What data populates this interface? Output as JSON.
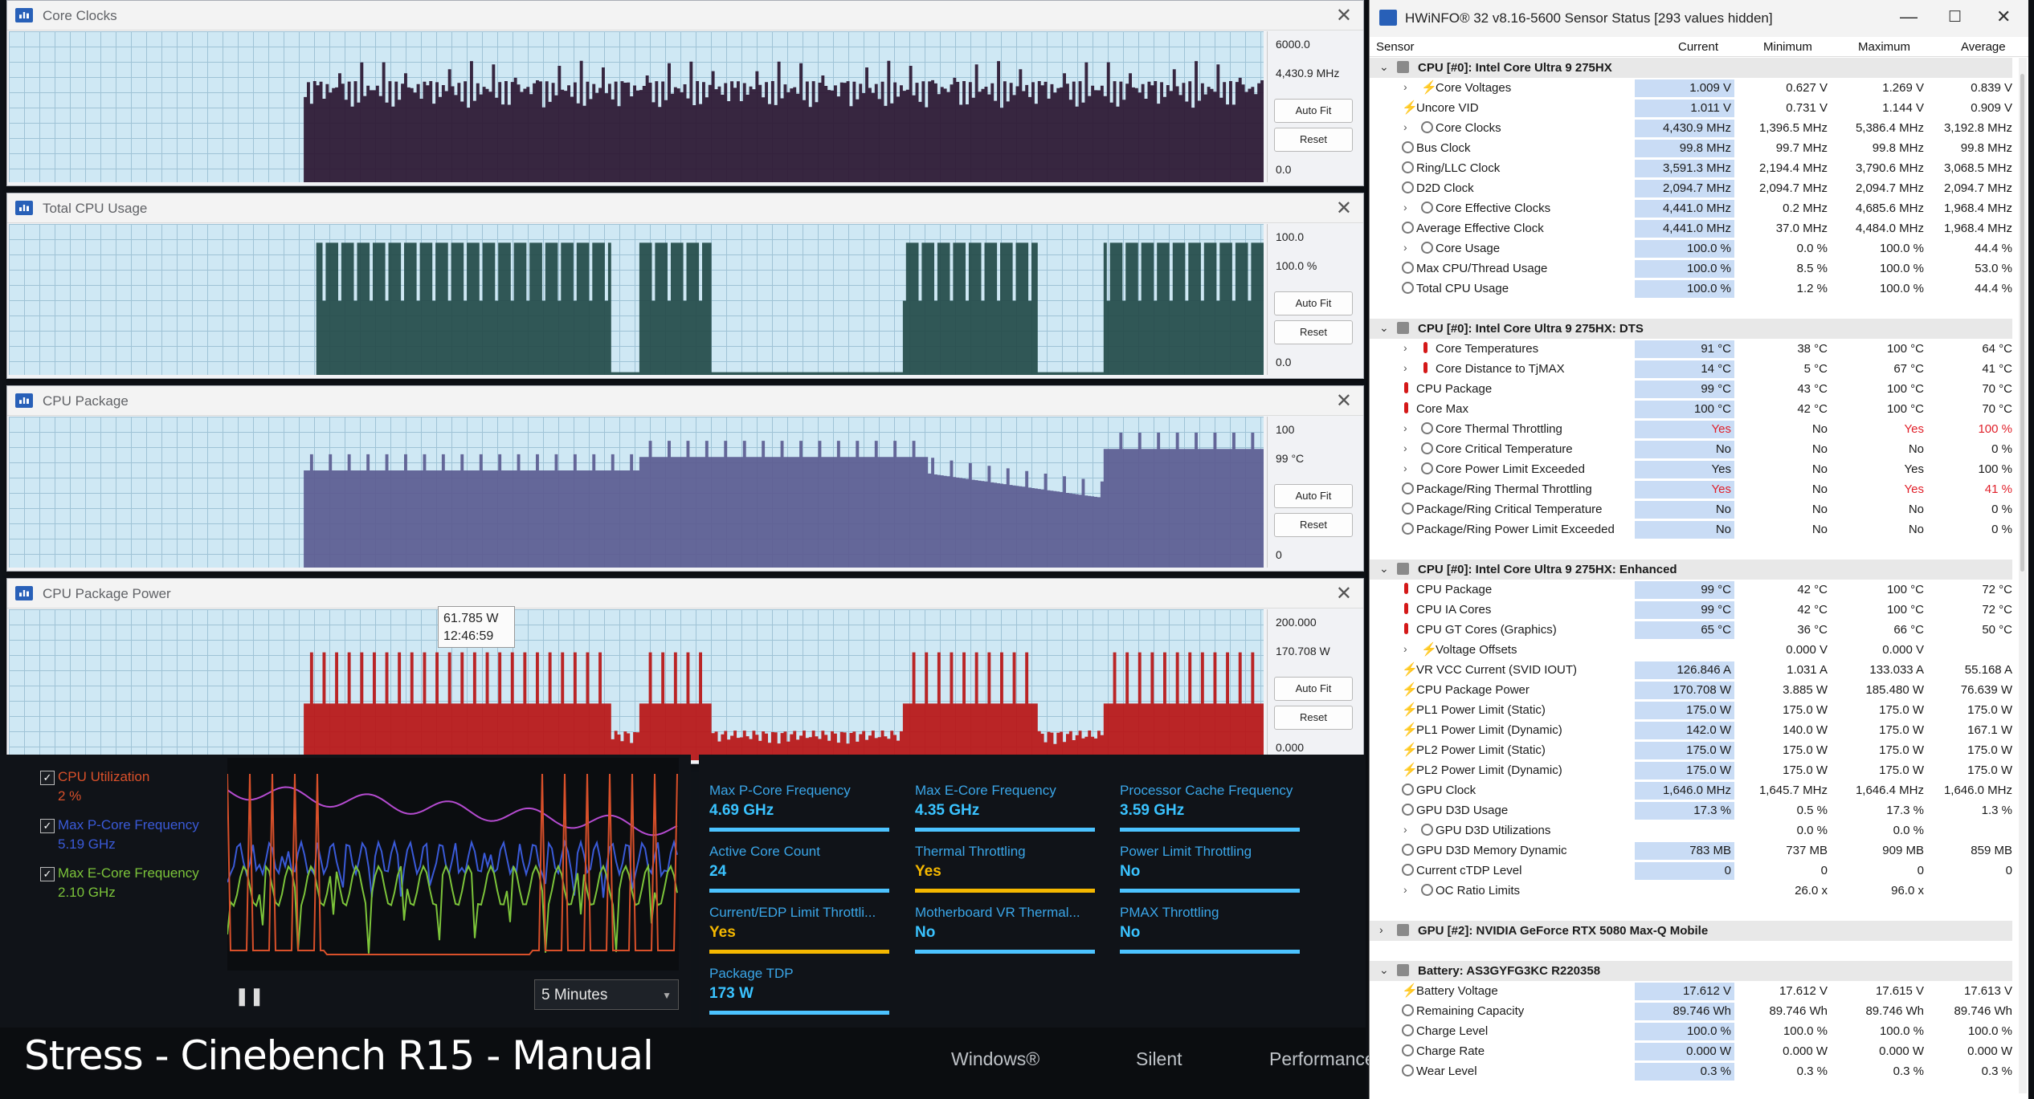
{
  "graphs": [
    {
      "title": "Core Clocks",
      "max": "6000.0",
      "cur": "4,430.9 MHz",
      "min": "0.0",
      "autofit": "Auto Fit",
      "reset": "Reset",
      "color": "#2a1530"
    },
    {
      "title": "Total CPU Usage",
      "max": "100.0",
      "cur": "100.0 %",
      "min": "0.0",
      "autofit": "Auto Fit",
      "reset": "Reset",
      "color": "#234a48"
    },
    {
      "title": "CPU Package",
      "max": "100",
      "cur": "99 °C",
      "min": "0",
      "autofit": "Auto Fit",
      "reset": "Reset",
      "color": "#5b5b90"
    },
    {
      "title": "CPU Package Power",
      "max": "200.000",
      "cur": "170.708 W",
      "min": "0.000",
      "autofit": "Auto Fit",
      "reset": "Reset",
      "color": "#b81414"
    }
  ],
  "tooltip": {
    "value": "61.785 W",
    "time": "12:46:59"
  },
  "xtu": {
    "legend": [
      {
        "name": "CPU Utilization",
        "value": "2 %",
        "color": "#d9502a"
      },
      {
        "name": "Max P-Core Frequency",
        "value": "5.19 GHz",
        "color": "#3a5ad8"
      },
      {
        "name": "Max E-Core Frequency",
        "value": "2.10 GHz",
        "color": "#7cc43a"
      }
    ],
    "duration": "5 Minutes",
    "tiles": [
      {
        "name": "Max P-Core Frequency",
        "value": "4.69 GHz",
        "color": "#4cc3ff"
      },
      {
        "name": "Max E-Core Frequency",
        "value": "4.35 GHz",
        "color": "#4cc3ff"
      },
      {
        "name": "Processor Cache Frequency",
        "value": "3.59 GHz",
        "color": "#4cc3ff"
      },
      {
        "name": "Active Core Count",
        "value": "24",
        "color": "#4cc3ff"
      },
      {
        "name": "Thermal Throttling",
        "value": "Yes",
        "color": "#f5b800"
      },
      {
        "name": "Power Limit Throttling",
        "value": "No",
        "color": "#4cc3ff"
      },
      {
        "name": "Current/EDP Limit Throttli...",
        "value": "Yes",
        "color": "#f5b800"
      },
      {
        "name": "Motherboard VR Thermal...",
        "value": "No",
        "color": "#4cc3ff"
      },
      {
        "name": "PMAX Throttling",
        "value": "No",
        "color": "#4cc3ff"
      },
      {
        "name": "Package TDP",
        "value": "173 W",
        "color": "#4cc3ff"
      }
    ],
    "caption": "Stress - Cinebench R15 - Manual",
    "modes": [
      "Windows®",
      "Silent",
      "Performance"
    ]
  },
  "hwinfo": {
    "title": "HWiNFO® 32 v8.16-5600 Sensor Status [293 values hidden]",
    "headers": {
      "sensor": "Sensor",
      "current": "Current",
      "minimum": "Minimum",
      "maximum": "Maximum",
      "average": "Average"
    },
    "rows": [
      {
        "type": "grp",
        "name": "CPU [#0]: Intel Core Ultra 9 275HX"
      },
      {
        "name": "Core Voltages",
        "sub": true,
        "icon": "bolt",
        "cur": "1.009 V",
        "min": "0.627 V",
        "max": "1.269 V",
        "avg": "0.839 V"
      },
      {
        "name": "Uncore VID",
        "icon": "bolt",
        "cur": "1.011 V",
        "min": "0.731 V",
        "max": "1.144 V",
        "avg": "0.909 V"
      },
      {
        "name": "Core Clocks",
        "sub": true,
        "icon": "clock",
        "cur": "4,430.9 MHz",
        "min": "1,396.5 MHz",
        "max": "5,386.4 MHz",
        "avg": "3,192.8 MHz"
      },
      {
        "name": "Bus Clock",
        "icon": "clock",
        "cur": "99.8 MHz",
        "min": "99.7 MHz",
        "max": "99.8 MHz",
        "avg": "99.8 MHz"
      },
      {
        "name": "Ring/LLC Clock",
        "icon": "clock",
        "cur": "3,591.3 MHz",
        "min": "2,194.4 MHz",
        "max": "3,790.6 MHz",
        "avg": "3,068.5 MHz"
      },
      {
        "name": "D2D Clock",
        "icon": "clock",
        "cur": "2,094.7 MHz",
        "min": "2,094.7 MHz",
        "max": "2,094.7 MHz",
        "avg": "2,094.7 MHz"
      },
      {
        "name": "Core Effective Clocks",
        "sub": true,
        "icon": "clock",
        "cur": "4,441.0 MHz",
        "min": "0.2 MHz",
        "max": "4,685.6 MHz",
        "avg": "1,968.4 MHz"
      },
      {
        "name": "Average Effective Clock",
        "icon": "clock",
        "cur": "4,441.0 MHz",
        "min": "37.0 MHz",
        "max": "4,484.0 MHz",
        "avg": "1,968.4 MHz"
      },
      {
        "name": "Core Usage",
        "sub": true,
        "icon": "clock",
        "cur": "100.0 %",
        "min": "0.0 %",
        "max": "100.0 %",
        "avg": "44.4 %"
      },
      {
        "name": "Max CPU/Thread Usage",
        "icon": "clock",
        "cur": "100.0 %",
        "min": "8.5 %",
        "max": "100.0 %",
        "avg": "53.0 %"
      },
      {
        "name": "Total CPU Usage",
        "icon": "clock",
        "cur": "100.0 %",
        "min": "1.2 %",
        "max": "100.0 %",
        "avg": "44.4 %"
      },
      {
        "type": "gap"
      },
      {
        "type": "grp",
        "name": "CPU [#0]: Intel Core Ultra 9 275HX: DTS"
      },
      {
        "name": "Core Temperatures",
        "sub": true,
        "icon": "temp",
        "cur": "91 °C",
        "min": "38 °C",
        "max": "100 °C",
        "avg": "64 °C"
      },
      {
        "name": "Core Distance to TjMAX",
        "sub": true,
        "icon": "temp",
        "cur": "14 °C",
        "min": "5 °C",
        "max": "67 °C",
        "avg": "41 °C"
      },
      {
        "name": "CPU Package",
        "icon": "temp",
        "cur": "99 °C",
        "min": "43 °C",
        "max": "100 °C",
        "avg": "70 °C"
      },
      {
        "name": "Core Max",
        "icon": "temp",
        "cur": "100 °C",
        "min": "42 °C",
        "max": "100 °C",
        "avg": "70 °C"
      },
      {
        "name": "Core Thermal Throttling",
        "sub": true,
        "icon": "clock",
        "cur": "Yes",
        "min": "No",
        "max": "Yes",
        "avg": "100 %",
        "red": true
      },
      {
        "name": "Core Critical Temperature",
        "sub": true,
        "icon": "clock",
        "cur": "No",
        "min": "No",
        "max": "No",
        "avg": "0 %"
      },
      {
        "name": "Core Power Limit Exceeded",
        "sub": true,
        "icon": "clock",
        "cur": "Yes",
        "min": "No",
        "max": "Yes",
        "avg": "100 %"
      },
      {
        "name": "Package/Ring Thermal Throttling",
        "icon": "clock",
        "cur": "Yes",
        "min": "No",
        "max": "Yes",
        "avg": "41 %",
        "red": true
      },
      {
        "name": "Package/Ring Critical Temperature",
        "icon": "clock",
        "cur": "No",
        "min": "No",
        "max": "No",
        "avg": "0 %"
      },
      {
        "name": "Package/Ring Power Limit Exceeded",
        "icon": "clock",
        "cur": "No",
        "min": "No",
        "max": "No",
        "avg": "0 %"
      },
      {
        "type": "gap"
      },
      {
        "type": "grp",
        "name": "CPU [#0]: Intel Core Ultra 9 275HX: Enhanced"
      },
      {
        "name": "CPU Package",
        "icon": "temp",
        "cur": "99 °C",
        "min": "42 °C",
        "max": "100 °C",
        "avg": "72 °C"
      },
      {
        "name": "CPU IA Cores",
        "icon": "temp",
        "cur": "99 °C",
        "min": "42 °C",
        "max": "100 °C",
        "avg": "72 °C"
      },
      {
        "name": "CPU GT Cores (Graphics)",
        "icon": "temp",
        "cur": "65 °C",
        "min": "36 °C",
        "max": "66 °C",
        "avg": "50 °C"
      },
      {
        "name": "Voltage Offsets",
        "sub": true,
        "icon": "bolt",
        "cur": "",
        "min": "0.000 V",
        "max": "0.000 V",
        "avg": ""
      },
      {
        "name": "VR VCC Current (SVID IOUT)",
        "icon": "bolt",
        "cur": "126.846 A",
        "min": "1.031 A",
        "max": "133.033 A",
        "avg": "55.168 A"
      },
      {
        "name": "CPU Package Power",
        "icon": "bolt",
        "cur": "170.708 W",
        "min": "3.885 W",
        "max": "185.480 W",
        "avg": "76.639 W"
      },
      {
        "name": "PL1 Power Limit (Static)",
        "icon": "bolt",
        "cur": "175.0 W",
        "min": "175.0 W",
        "max": "175.0 W",
        "avg": "175.0 W"
      },
      {
        "name": "PL1 Power Limit (Dynamic)",
        "icon": "bolt",
        "cur": "142.0 W",
        "min": "140.0 W",
        "max": "175.0 W",
        "avg": "167.1 W"
      },
      {
        "name": "PL2 Power Limit (Static)",
        "icon": "bolt",
        "cur": "175.0 W",
        "min": "175.0 W",
        "max": "175.0 W",
        "avg": "175.0 W"
      },
      {
        "name": "PL2 Power Limit (Dynamic)",
        "icon": "bolt",
        "cur": "175.0 W",
        "min": "175.0 W",
        "max": "175.0 W",
        "avg": "175.0 W"
      },
      {
        "name": "GPU Clock",
        "icon": "clock",
        "cur": "1,646.0 MHz",
        "min": "1,645.7 MHz",
        "max": "1,646.4 MHz",
        "avg": "1,646.0 MHz"
      },
      {
        "name": "GPU D3D Usage",
        "icon": "clock",
        "cur": "17.3 %",
        "min": "0.5 %",
        "max": "17.3 %",
        "avg": "1.3 %"
      },
      {
        "name": "GPU D3D Utilizations",
        "sub": true,
        "icon": "clock",
        "cur": "",
        "min": "0.0 %",
        "max": "0.0 %",
        "avg": ""
      },
      {
        "name": "GPU D3D Memory Dynamic",
        "icon": "clock",
        "cur": "783 MB",
        "min": "737 MB",
        "max": "909 MB",
        "avg": "859 MB"
      },
      {
        "name": "Current cTDP Level",
        "icon": "clock",
        "cur": "0",
        "min": "0",
        "max": "0",
        "avg": "0"
      },
      {
        "name": "OC Ratio Limits",
        "sub": true,
        "icon": "clock",
        "cur": "",
        "min": "26.0 x",
        "max": "96.0 x",
        "avg": ""
      },
      {
        "type": "gap"
      },
      {
        "type": "grp",
        "collapsed": true,
        "name": "GPU [#2]: NVIDIA GeForce RTX 5080 Max-Q Mobile"
      },
      {
        "type": "gap"
      },
      {
        "type": "grp",
        "name": "Battery: AS3GYFG3KC R220358"
      },
      {
        "name": "Battery Voltage",
        "icon": "bolt",
        "cur": "17.612 V",
        "min": "17.612 V",
        "max": "17.615 V",
        "avg": "17.613 V"
      },
      {
        "name": "Remaining Capacity",
        "icon": "clock",
        "cur": "89.746 Wh",
        "min": "89.746 Wh",
        "max": "89.746 Wh",
        "avg": "89.746 Wh"
      },
      {
        "name": "Charge Level",
        "icon": "clock",
        "cur": "100.0 %",
        "min": "100.0 %",
        "max": "100.0 %",
        "avg": "100.0 %"
      },
      {
        "name": "Charge Rate",
        "icon": "clock",
        "cur": "0.000 W",
        "min": "0.000 W",
        "max": "0.000 W",
        "avg": "0.000 W"
      },
      {
        "name": "Wear Level",
        "icon": "clock",
        "cur": "0.3 %",
        "min": "0.3 %",
        "max": "0.3 %",
        "avg": "0.3 %"
      }
    ]
  }
}
